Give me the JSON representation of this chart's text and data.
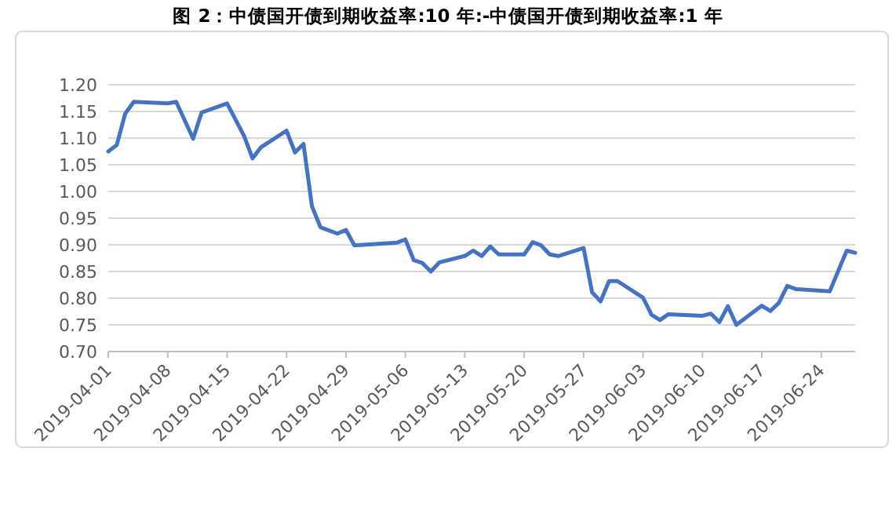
{
  "chart_data": {
    "type": "line",
    "title": "图 2：中债国开债到期收益率:10 年:-中债国开债到期收益率:1 年",
    "x": [
      "2019-04-01",
      "2019-04-02",
      "2019-04-03",
      "2019-04-04",
      "2019-04-08",
      "2019-04-09",
      "2019-04-11",
      "2019-04-12",
      "2019-04-15",
      "2019-04-17",
      "2019-04-18",
      "2019-04-19",
      "2019-04-22",
      "2019-04-23",
      "2019-04-24",
      "2019-04-25",
      "2019-04-26",
      "2019-04-28",
      "2019-04-29",
      "2019-04-30",
      "2019-05-05",
      "2019-05-06",
      "2019-05-07",
      "2019-05-08",
      "2019-05-09",
      "2019-05-10",
      "2019-05-13",
      "2019-05-14",
      "2019-05-15",
      "2019-05-16",
      "2019-05-17",
      "2019-05-20",
      "2019-05-21",
      "2019-05-22",
      "2019-05-23",
      "2019-05-24",
      "2019-05-27",
      "2019-05-28",
      "2019-05-29",
      "2019-05-30",
      "2019-05-31",
      "2019-06-03",
      "2019-06-04",
      "2019-06-05",
      "2019-06-06",
      "2019-06-10",
      "2019-06-11",
      "2019-06-12",
      "2019-06-13",
      "2019-06-14",
      "2019-06-17",
      "2019-06-18",
      "2019-06-19",
      "2019-06-20",
      "2019-06-21",
      "2019-06-25",
      "2019-06-27",
      "2019-06-28"
    ],
    "series": [
      {
        "color": "#4472c4",
        "values": [
          1.075,
          1.087,
          1.146,
          1.168,
          1.165,
          1.168,
          1.099,
          1.148,
          1.165,
          1.104,
          1.062,
          1.083,
          1.114,
          1.073,
          1.089,
          0.972,
          0.933,
          0.921,
          0.928,
          0.899,
          0.904,
          0.91,
          0.871,
          0.866,
          0.85,
          0.867,
          0.879,
          0.889,
          0.879,
          0.897,
          0.882,
          0.882,
          0.905,
          0.899,
          0.882,
          0.879,
          0.894,
          0.811,
          0.794,
          0.832,
          0.832,
          0.801,
          0.769,
          0.759,
          0.77,
          0.767,
          0.771,
          0.755,
          0.785,
          0.75,
          0.786,
          0.776,
          0.791,
          0.823,
          0.817,
          0.813,
          0.889,
          0.885
        ]
      }
    ],
    "xlim": [
      "2019-04-01",
      "2019-06-28"
    ],
    "xticks": [
      "2019-04-01",
      "2019-04-08",
      "2019-04-15",
      "2019-04-22",
      "2019-04-29",
      "2019-05-06",
      "2019-05-13",
      "2019-05-20",
      "2019-05-27",
      "2019-06-03",
      "2019-06-10",
      "2019-06-17",
      "2019-06-24"
    ],
    "ylim": [
      0.7,
      1.2
    ],
    "yticks": [
      {
        "value": 0.7,
        "label": "0.70"
      },
      {
        "value": 0.75,
        "label": "0.75"
      },
      {
        "value": 0.8,
        "label": "0.80"
      },
      {
        "value": 0.85,
        "label": "0.85"
      },
      {
        "value": 0.9,
        "label": "0.90"
      },
      {
        "value": 0.95,
        "label": "0.95"
      },
      {
        "value": 1.0,
        "label": "1.00"
      },
      {
        "value": 1.05,
        "label": "1.05"
      },
      {
        "value": 1.1,
        "label": "1.10"
      },
      {
        "value": 1.15,
        "label": "1.15"
      },
      {
        "value": 1.2,
        "label": "1.20"
      }
    ],
    "grid": "y",
    "marker": "none",
    "line_style": "solid"
  }
}
